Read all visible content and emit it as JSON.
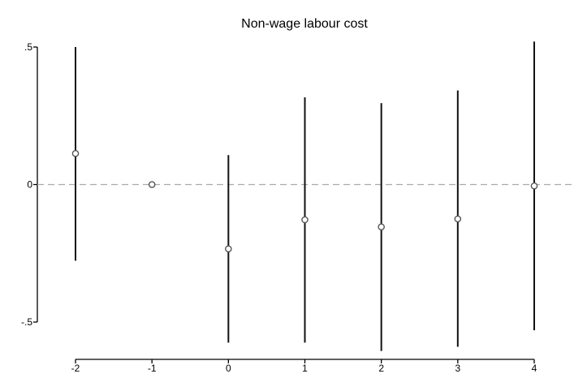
{
  "chart_data": {
    "type": "scatter",
    "title": "Non-wage labour cost",
    "xlabel": "",
    "ylabel": "",
    "x_ticks": [
      "-2",
      "-1",
      "0",
      "1",
      "2",
      "3",
      "4"
    ],
    "y_ticks": [
      ".5",
      "0",
      "-.5"
    ],
    "xlim": [
      -2,
      4
    ],
    "ylim": [
      -0.5,
      0.5
    ],
    "reference_line": {
      "y": 0,
      "style": "dashed",
      "color": "#aaaaaa"
    },
    "points": [
      {
        "x": -2,
        "estimate": 0.113,
        "ci_low": -0.277,
        "ci_high": 0.5
      },
      {
        "x": -1,
        "estimate": 0.0,
        "ci_low": null,
        "ci_high": null
      },
      {
        "x": 0,
        "estimate": -0.234,
        "ci_low": -0.575,
        "ci_high": 0.107
      },
      {
        "x": 1,
        "estimate": -0.128,
        "ci_low": -0.575,
        "ci_high": 0.317
      },
      {
        "x": 2,
        "estimate": -0.154,
        "ci_low": -0.605,
        "ci_high": 0.296
      },
      {
        "x": 3,
        "estimate": -0.125,
        "ci_low": -0.59,
        "ci_high": 0.342
      },
      {
        "x": 4,
        "estimate": -0.005,
        "ci_low": -0.53,
        "ci_high": 0.52
      }
    ],
    "grid": false,
    "legend": "none",
    "colors": {
      "marker": "#555555",
      "ci": "#111111",
      "axis": "#000000",
      "reference": "#aaaaaa"
    }
  }
}
